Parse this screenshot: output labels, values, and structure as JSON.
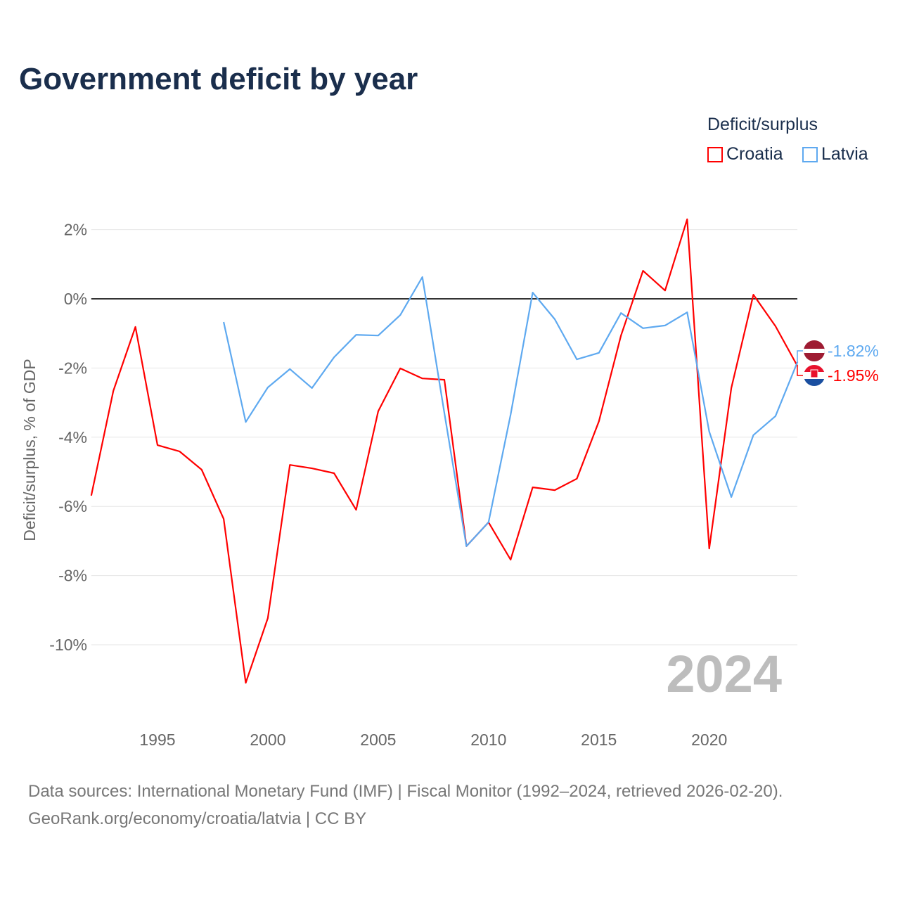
{
  "title": "Government deficit by year",
  "legend": {
    "title": "Deficit/surplus",
    "items": [
      {
        "label": "Croatia",
        "color": "#ff0000"
      },
      {
        "label": "Latvia",
        "color": "#5ea9f0"
      }
    ]
  },
  "footer": {
    "line1": "Data sources: International Monetary Fund (IMF) | Fiscal Monitor (1992–2024, retrieved 2026-02-20).",
    "line2": "GeoRank.org/economy/croatia/latvia | CC BY"
  },
  "chart_data": {
    "type": "line",
    "title": "Government deficit by year",
    "xlabel": "",
    "ylabel": "Deficit/surplus, % of GDP",
    "xlim": [
      1992,
      2024
    ],
    "ylim": [
      -12,
      3
    ],
    "x_ticks": [
      1995,
      2000,
      2005,
      2010,
      2015,
      2020
    ],
    "y_ticks": [
      2,
      0,
      -2,
      -4,
      -6,
      -8,
      -10
    ],
    "y_tick_labels": [
      "2%",
      "0%",
      "-2%",
      "-4%",
      "-6%",
      "-8%",
      "-10%"
    ],
    "year_label": "2024",
    "series": [
      {
        "name": "Croatia",
        "color": "#ff0000",
        "end_label": "-1.95%",
        "x": [
          1992,
          1993,
          1994,
          1995,
          1996,
          1997,
          1998,
          1999,
          2000,
          2001,
          2002,
          2003,
          2004,
          2005,
          2006,
          2007,
          2008,
          2009,
          2010,
          2011,
          2012,
          2013,
          2014,
          2015,
          2016,
          2017,
          2018,
          2019,
          2020,
          2021,
          2022,
          2023,
          2024
        ],
        "values": [
          -5.69,
          -2.66,
          -0.81,
          -4.23,
          -4.41,
          -4.94,
          -6.36,
          -11.1,
          -9.23,
          -4.8,
          -4.9,
          -5.04,
          -6.1,
          -3.25,
          -2.01,
          -2.3,
          -2.34,
          -7.15,
          -6.46,
          -7.54,
          -5.45,
          -5.53,
          -5.2,
          -3.54,
          -1.06,
          0.81,
          0.24,
          2.3,
          -7.22,
          -2.58,
          0.12,
          -0.79,
          -1.95
        ]
      },
      {
        "name": "Latvia",
        "color": "#5ea9f0",
        "end_label": "-1.82%",
        "x": [
          1998,
          1999,
          2000,
          2001,
          2002,
          2003,
          2004,
          2005,
          2006,
          2007,
          2008,
          2009,
          2010,
          2011,
          2012,
          2013,
          2014,
          2015,
          2016,
          2017,
          2018,
          2019,
          2020,
          2021,
          2022,
          2023,
          2024
        ],
        "values": [
          -0.67,
          -3.56,
          -2.56,
          -2.03,
          -2.58,
          -1.69,
          -1.04,
          -1.06,
          -0.47,
          0.63,
          -3.3,
          -7.15,
          -6.46,
          -3.35,
          0.18,
          -0.59,
          -1.75,
          -1.56,
          -0.41,
          -0.85,
          -0.77,
          -0.39,
          -3.84,
          -5.73,
          -3.94,
          -3.39,
          -1.82
        ]
      }
    ]
  }
}
